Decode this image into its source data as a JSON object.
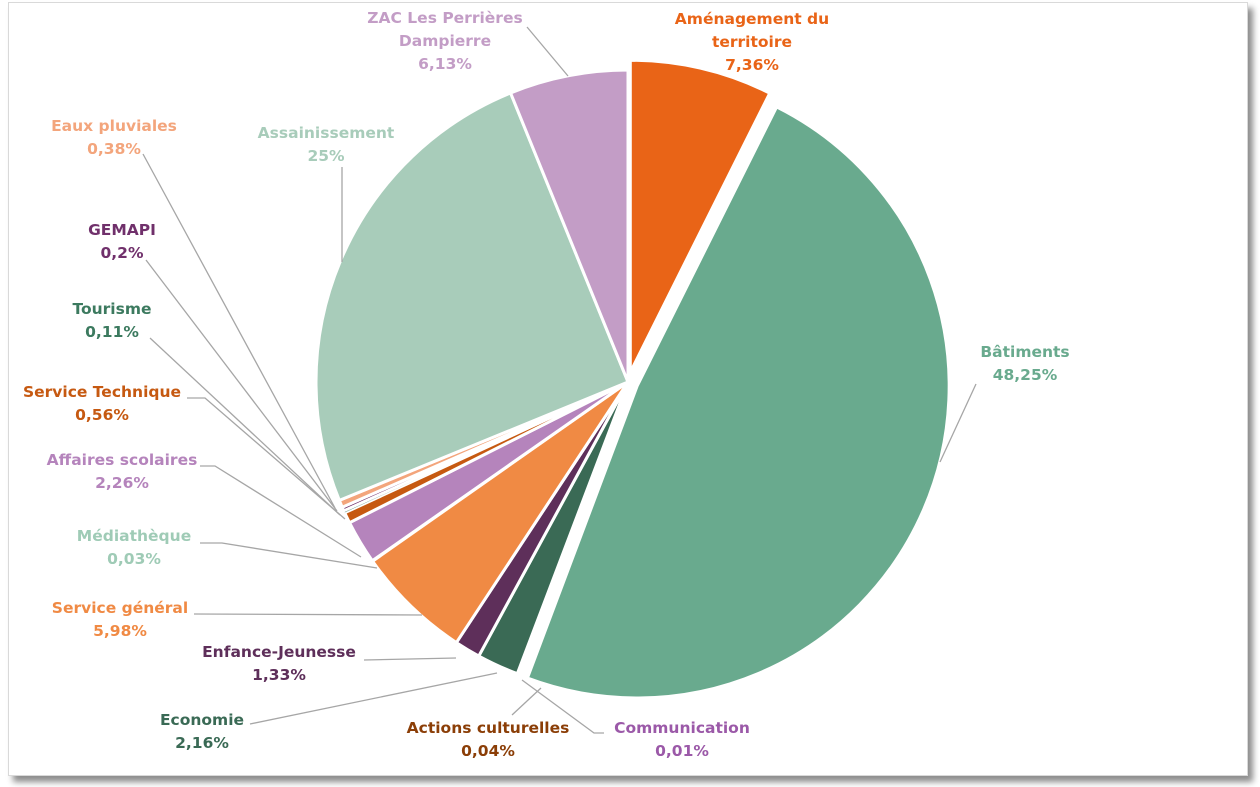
{
  "chart_data": {
    "type": "pie",
    "title": "",
    "slices": [
      {
        "name": "Aménagement du territoire",
        "label": "Aménagement du territoire",
        "pct_label": "7,36%",
        "value": 7.36,
        "color": "#E96417",
        "text_color": "#E96417",
        "explode": true
      },
      {
        "name": "Bâtiments",
        "label": "Bâtiments",
        "pct_label": "48,25%",
        "value": 48.25,
        "color": "#69AA8E",
        "text_color": "#69AA8E",
        "explode": true
      },
      {
        "name": "Communication",
        "label": "Communication",
        "pct_label": "0,01%",
        "value": 0.01,
        "color": "#9B59A8",
        "text_color": "#9B59A8",
        "explode": false
      },
      {
        "name": "Actions culturelles",
        "label": "Actions culturelles",
        "pct_label": "0,04%",
        "value": 0.04,
        "color": "#B5540F",
        "text_color": "#8B3E07",
        "explode": false
      },
      {
        "name": "Economie",
        "label": "Economie",
        "pct_label": "2,16%",
        "value": 2.16,
        "color": "#3A6A55",
        "text_color": "#3A6A55",
        "explode": false
      },
      {
        "name": "Enfance-Jeunesse",
        "label": "Enfance-Jeunesse",
        "pct_label": "1,33%",
        "value": 1.33,
        "color": "#5E2F5A",
        "text_color": "#5E2F5A",
        "explode": false
      },
      {
        "name": "Service général",
        "label": "Service général",
        "pct_label": "5,98%",
        "value": 5.98,
        "color": "#F08A44",
        "text_color": "#F08A44",
        "explode": false
      },
      {
        "name": "Médiathèque",
        "label": "Médiathèque",
        "pct_label": "0,03%",
        "value": 0.03,
        "color": "#9FCBB6",
        "text_color": "#9FCBB6",
        "explode": false
      },
      {
        "name": "Affaires scolaires",
        "label": "Affaires scolaires",
        "pct_label": "2,26%",
        "value": 2.26,
        "color": "#B584BC",
        "text_color": "#B584BC",
        "explode": false
      },
      {
        "name": "Service Technique",
        "label": "Service Technique",
        "pct_label": "0,56%",
        "value": 0.56,
        "color": "#C65911",
        "text_color": "#C65911",
        "explode": false
      },
      {
        "name": "Tourisme",
        "label": "Tourisme",
        "pct_label": "0,11%",
        "value": 0.11,
        "color": "#3C7A5F",
        "text_color": "#3C7A5F",
        "explode": false
      },
      {
        "name": "GEMAPI",
        "label": "GEMAPI",
        "pct_label": "0,2%",
        "value": 0.2,
        "color": "#70306B",
        "text_color": "#70306B",
        "explode": false
      },
      {
        "name": "Eaux pluviales",
        "label": "Eaux pluviales",
        "pct_label": "0,38%",
        "value": 0.38,
        "color": "#F3A57C",
        "text_color": "#F3A57C",
        "explode": false
      },
      {
        "name": "Assainissement",
        "label": "Assainissement",
        "pct_label": "25%",
        "value": 25.0,
        "color": "#A8CCBA",
        "text_color": "#A8CCBA",
        "explode": false
      },
      {
        "name": "ZAC Les Perrières Dampierre",
        "label": "ZAC Les Perrières Dampierre",
        "pct_label": "6,13%",
        "value": 6.13,
        "color": "#C39DC6",
        "text_color": "#C39DC6",
        "explode": false
      }
    ]
  }
}
